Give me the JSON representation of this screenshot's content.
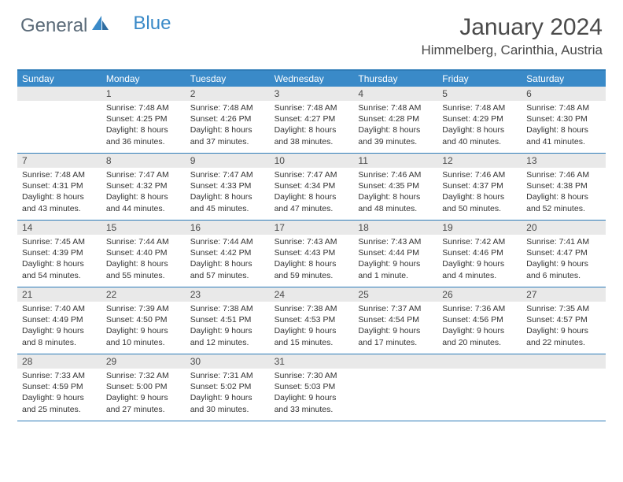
{
  "logo": {
    "part1": "General",
    "part2": "Blue"
  },
  "title": "January 2024",
  "location": "Himmelberg, Carinthia, Austria",
  "colors": {
    "header_blue": "#3a8ac8",
    "divider_blue": "#2e7cb8",
    "daynum_bg": "#e9e9e9",
    "text_gray": "#4a4a4a",
    "body_text": "#333333"
  },
  "weekdays": [
    "Sunday",
    "Monday",
    "Tuesday",
    "Wednesday",
    "Thursday",
    "Friday",
    "Saturday"
  ],
  "weeks": [
    [
      null,
      {
        "n": "1",
        "sunrise": "7:48 AM",
        "sunset": "4:25 PM",
        "daylight": "8 hours and 36 minutes."
      },
      {
        "n": "2",
        "sunrise": "7:48 AM",
        "sunset": "4:26 PM",
        "daylight": "8 hours and 37 minutes."
      },
      {
        "n": "3",
        "sunrise": "7:48 AM",
        "sunset": "4:27 PM",
        "daylight": "8 hours and 38 minutes."
      },
      {
        "n": "4",
        "sunrise": "7:48 AM",
        "sunset": "4:28 PM",
        "daylight": "8 hours and 39 minutes."
      },
      {
        "n": "5",
        "sunrise": "7:48 AM",
        "sunset": "4:29 PM",
        "daylight": "8 hours and 40 minutes."
      },
      {
        "n": "6",
        "sunrise": "7:48 AM",
        "sunset": "4:30 PM",
        "daylight": "8 hours and 41 minutes."
      }
    ],
    [
      {
        "n": "7",
        "sunrise": "7:48 AM",
        "sunset": "4:31 PM",
        "daylight": "8 hours and 43 minutes."
      },
      {
        "n": "8",
        "sunrise": "7:47 AM",
        "sunset": "4:32 PM",
        "daylight": "8 hours and 44 minutes."
      },
      {
        "n": "9",
        "sunrise": "7:47 AM",
        "sunset": "4:33 PM",
        "daylight": "8 hours and 45 minutes."
      },
      {
        "n": "10",
        "sunrise": "7:47 AM",
        "sunset": "4:34 PM",
        "daylight": "8 hours and 47 minutes."
      },
      {
        "n": "11",
        "sunrise": "7:46 AM",
        "sunset": "4:35 PM",
        "daylight": "8 hours and 48 minutes."
      },
      {
        "n": "12",
        "sunrise": "7:46 AM",
        "sunset": "4:37 PM",
        "daylight": "8 hours and 50 minutes."
      },
      {
        "n": "13",
        "sunrise": "7:46 AM",
        "sunset": "4:38 PM",
        "daylight": "8 hours and 52 minutes."
      }
    ],
    [
      {
        "n": "14",
        "sunrise": "7:45 AM",
        "sunset": "4:39 PM",
        "daylight": "8 hours and 54 minutes."
      },
      {
        "n": "15",
        "sunrise": "7:44 AM",
        "sunset": "4:40 PM",
        "daylight": "8 hours and 55 minutes."
      },
      {
        "n": "16",
        "sunrise": "7:44 AM",
        "sunset": "4:42 PM",
        "daylight": "8 hours and 57 minutes."
      },
      {
        "n": "17",
        "sunrise": "7:43 AM",
        "sunset": "4:43 PM",
        "daylight": "8 hours and 59 minutes."
      },
      {
        "n": "18",
        "sunrise": "7:43 AM",
        "sunset": "4:44 PM",
        "daylight": "9 hours and 1 minute."
      },
      {
        "n": "19",
        "sunrise": "7:42 AM",
        "sunset": "4:46 PM",
        "daylight": "9 hours and 4 minutes."
      },
      {
        "n": "20",
        "sunrise": "7:41 AM",
        "sunset": "4:47 PM",
        "daylight": "9 hours and 6 minutes."
      }
    ],
    [
      {
        "n": "21",
        "sunrise": "7:40 AM",
        "sunset": "4:49 PM",
        "daylight": "9 hours and 8 minutes."
      },
      {
        "n": "22",
        "sunrise": "7:39 AM",
        "sunset": "4:50 PM",
        "daylight": "9 hours and 10 minutes."
      },
      {
        "n": "23",
        "sunrise": "7:38 AM",
        "sunset": "4:51 PM",
        "daylight": "9 hours and 12 minutes."
      },
      {
        "n": "24",
        "sunrise": "7:38 AM",
        "sunset": "4:53 PM",
        "daylight": "9 hours and 15 minutes."
      },
      {
        "n": "25",
        "sunrise": "7:37 AM",
        "sunset": "4:54 PM",
        "daylight": "9 hours and 17 minutes."
      },
      {
        "n": "26",
        "sunrise": "7:36 AM",
        "sunset": "4:56 PM",
        "daylight": "9 hours and 20 minutes."
      },
      {
        "n": "27",
        "sunrise": "7:35 AM",
        "sunset": "4:57 PM",
        "daylight": "9 hours and 22 minutes."
      }
    ],
    [
      {
        "n": "28",
        "sunrise": "7:33 AM",
        "sunset": "4:59 PM",
        "daylight": "9 hours and 25 minutes."
      },
      {
        "n": "29",
        "sunrise": "7:32 AM",
        "sunset": "5:00 PM",
        "daylight": "9 hours and 27 minutes."
      },
      {
        "n": "30",
        "sunrise": "7:31 AM",
        "sunset": "5:02 PM",
        "daylight": "9 hours and 30 minutes."
      },
      {
        "n": "31",
        "sunrise": "7:30 AM",
        "sunset": "5:03 PM",
        "daylight": "9 hours and 33 minutes."
      },
      null,
      null,
      null
    ]
  ],
  "labels": {
    "sunrise": "Sunrise:",
    "sunset": "Sunset:",
    "daylight": "Daylight:"
  }
}
